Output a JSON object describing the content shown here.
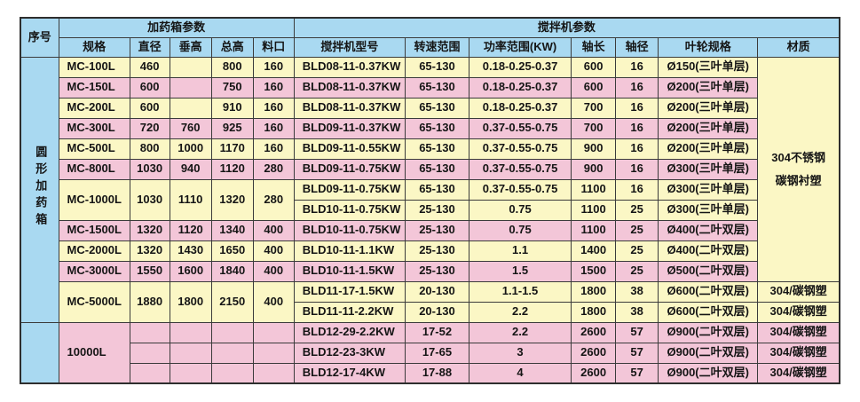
{
  "table": {
    "header": {
      "serial": "序号",
      "box_group": "加药箱参数",
      "mixer_group": "搅拌机参数",
      "box_cols": [
        "规格",
        "直径",
        "垂高",
        "总高",
        "料口"
      ],
      "mixer_cols": [
        "搅拌机型号",
        "转速范围",
        "功率范围(KW)",
        "轴长",
        "轴径",
        "叶轮规格",
        "材质"
      ]
    },
    "serial_groups": [
      {
        "label": "圆形加药箱",
        "rowspan": 13
      },
      {
        "label": "",
        "rowspan": 3
      }
    ],
    "material_merged": {
      "lines": [
        "304不锈钢",
        "碳钢衬塑"
      ],
      "rowspan": 11,
      "tone": "yellow"
    },
    "colors": {
      "header_blue": "#a9d9f1",
      "row_yellow": "#fbf7c5",
      "row_pink": "#f3c6d8",
      "grid_line": "#3b3b3b"
    },
    "groups": [
      {
        "spec": "MC-100L",
        "tone": "yellow",
        "dims": [
          "460",
          "",
          "800",
          "160"
        ],
        "mixers": [
          {
            "model": "BLD08-11-0.37KW",
            "speed": "65-130",
            "power": "0.18-0.25-0.37",
            "shaft_length": "600",
            "shaft_diameter": "16",
            "impeller": "Ø150(三叶单层)",
            "material": null
          }
        ]
      },
      {
        "spec": "MC-150L",
        "tone": "pink",
        "dims": [
          "600",
          "",
          "750",
          "160"
        ],
        "mixers": [
          {
            "model": "BLD08-11-0.37KW",
            "speed": "65-130",
            "power": "0.18-0.25-0.37",
            "shaft_length": "600",
            "shaft_diameter": "16",
            "impeller": "Ø200(三叶单层)",
            "material": null
          }
        ]
      },
      {
        "spec": "MC-200L",
        "tone": "yellow",
        "dims": [
          "600",
          "",
          "910",
          "160"
        ],
        "mixers": [
          {
            "model": "BLD08-11-0.37KW",
            "speed": "65-130",
            "power": "0.18-0.25-0.37",
            "shaft_length": "700",
            "shaft_diameter": "16",
            "impeller": "Ø200(三叶单层)",
            "material": null
          }
        ]
      },
      {
        "spec": "MC-300L",
        "tone": "pink",
        "dims": [
          "720",
          "760",
          "925",
          "160"
        ],
        "mixers": [
          {
            "model": "BLD09-11-0.37KW",
            "speed": "65-130",
            "power": "0.37-0.55-0.75",
            "shaft_length": "700",
            "shaft_diameter": "16",
            "impeller": "Ø200(三叶单层)",
            "material": null
          }
        ]
      },
      {
        "spec": "MC-500L",
        "tone": "yellow",
        "dims": [
          "800",
          "1000",
          "1170",
          "160"
        ],
        "mixers": [
          {
            "model": "BLD09-11-0.55KW",
            "speed": "65-130",
            "power": "0.37-0.55-0.75",
            "shaft_length": "900",
            "shaft_diameter": "16",
            "impeller": "Ø200(三叶单层)",
            "material": null
          }
        ]
      },
      {
        "spec": "MC-800L",
        "tone": "pink",
        "dims": [
          "1030",
          "940",
          "1120",
          "280"
        ],
        "mixers": [
          {
            "model": "BLD09-11-0.75KW",
            "speed": "65-130",
            "power": "0.37-0.55-0.75",
            "shaft_length": "900",
            "shaft_diameter": "16",
            "impeller": "Ø300(三叶单层)",
            "material": null
          }
        ]
      },
      {
        "spec": "MC-1000L",
        "tone": "yellow",
        "dims": [
          "1030",
          "1110",
          "1320",
          "280"
        ],
        "mixers": [
          {
            "model": "BLD09-11-0.75KW",
            "speed": "65-130",
            "power": "0.37-0.55-0.75",
            "shaft_length": "1100",
            "shaft_diameter": "16",
            "impeller": "Ø300(三叶单层)",
            "material": null
          },
          {
            "model": "BLD10-11-0.75KW",
            "speed": "25-130",
            "power": "0.75",
            "shaft_length": "1100",
            "shaft_diameter": "25",
            "impeller": "Ø300(三叶单层)",
            "material": null
          }
        ]
      },
      {
        "spec": "MC-1500L",
        "tone": "pink",
        "dims": [
          "1320",
          "1120",
          "1340",
          "400"
        ],
        "mixers": [
          {
            "model": "BLD10-11-0.75KW",
            "speed": "25-130",
            "power": "0.75",
            "shaft_length": "1100",
            "shaft_diameter": "25",
            "impeller": "Ø400(二叶双层)",
            "material": null
          }
        ]
      },
      {
        "spec": "MC-2000L",
        "tone": "yellow",
        "dims": [
          "1320",
          "1430",
          "1650",
          "400"
        ],
        "mixers": [
          {
            "model": "BLD10-11-1.1KW",
            "speed": "25-130",
            "power": "1.1",
            "shaft_length": "1400",
            "shaft_diameter": "25",
            "impeller": "Ø400(二叶双层)",
            "material": null
          }
        ]
      },
      {
        "spec": "MC-3000L",
        "tone": "pink",
        "dims": [
          "1550",
          "1600",
          "1840",
          "400"
        ],
        "mixers": [
          {
            "model": "BLD10-11-1.5KW",
            "speed": "25-130",
            "power": "1.5",
            "shaft_length": "1500",
            "shaft_diameter": "25",
            "impeller": "Ø500(二叶双层)",
            "material": null
          }
        ]
      },
      {
        "spec": "MC-5000L",
        "tone": "yellow",
        "dims": [
          "1880",
          "1800",
          "2150",
          "400"
        ],
        "mixers": [
          {
            "model": "BLD11-17-1.5KW",
            "speed": "20-130",
            "power": "1.1-1.5",
            "shaft_length": "1800",
            "shaft_diameter": "38",
            "impeller": "Ø600(二叶双层)",
            "material": "304/碳钢塑"
          },
          {
            "model": "BLD11-11-2.2KW",
            "speed": "20-130",
            "power": "2.2",
            "shaft_length": "1800",
            "shaft_diameter": "38",
            "impeller": "Ø600(二叶双层)",
            "material": "304/碳钢塑"
          }
        ]
      },
      {
        "spec": "10000L",
        "tone": "pink",
        "dims": [
          "",
          "",
          "",
          ""
        ],
        "dims_per_row": true,
        "mixers": [
          {
            "model": "BLD12-29-2.2KW",
            "speed": "17-52",
            "power": "2.2",
            "shaft_length": "2600",
            "shaft_diameter": "57",
            "impeller": "Ø900(二叶双层)",
            "material": "304/碳钢塑"
          },
          {
            "model": "BLD12-23-3KW",
            "speed": "17-65",
            "power": "3",
            "shaft_length": "2600",
            "shaft_diameter": "57",
            "impeller": "Ø900(二叶双层)",
            "material": "304/碳钢塑"
          },
          {
            "model": "BLD12-17-4KW",
            "speed": "17-88",
            "power": "4",
            "shaft_length": "2600",
            "shaft_diameter": "57",
            "impeller": "Ø900(二叶双层)",
            "material": "304/碳钢塑"
          }
        ]
      }
    ]
  }
}
